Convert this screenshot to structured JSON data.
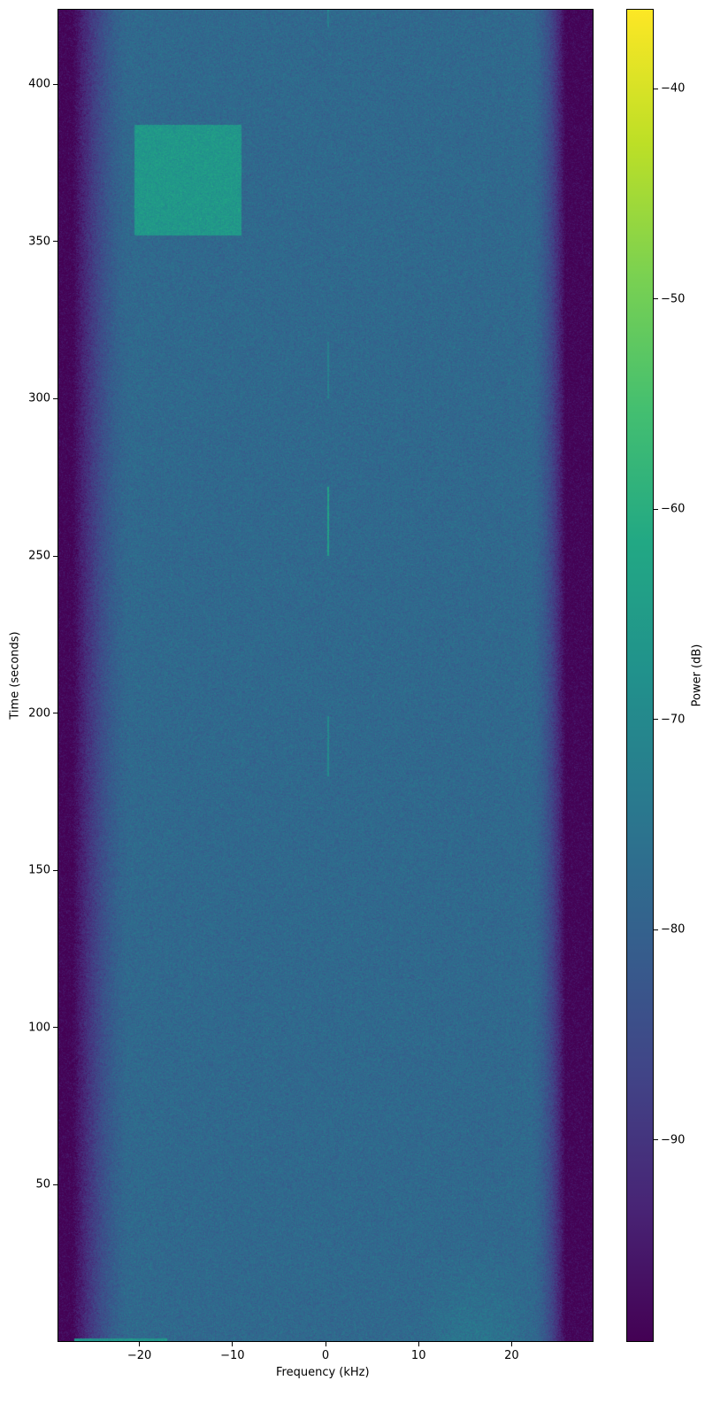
{
  "chart_data": {
    "type": "heatmap",
    "subtype": "spectrogram",
    "xlabel": "Frequency (kHz)",
    "ylabel": "Time (seconds)",
    "colorbar_label": "Power (dB)",
    "colormap": "viridis",
    "xlim": [
      -28.8,
      28.8
    ],
    "ylim": [
      0,
      424
    ],
    "clim": [
      -99.6,
      -36.2
    ],
    "xticks": [
      -20,
      -10,
      0,
      10,
      20
    ],
    "xtick_labels": [
      "−20",
      "−10",
      "0",
      "10",
      "20"
    ],
    "yticks": [
      50,
      100,
      150,
      200,
      250,
      300,
      350,
      400
    ],
    "ytick_labels": [
      "50",
      "100",
      "150",
      "200",
      "250",
      "300",
      "350",
      "400"
    ],
    "cticks": [
      -40,
      -50,
      -60,
      -70,
      -80,
      -90
    ],
    "ctick_labels": [
      "−40",
      "−50",
      "−60",
      "−70",
      "−80",
      "−90"
    ],
    "background_power_db": -78,
    "band_edge_power_db": -99,
    "features": [
      {
        "kind": "wideband-block",
        "freq_khz": [
          -20.5,
          -9
        ],
        "time_s": [
          352,
          387
        ],
        "power_db": -66
      },
      {
        "kind": "tone",
        "freq_khz": [
          0.2,
          0.4
        ],
        "time_s": [
          250,
          272
        ],
        "power_db": -64
      },
      {
        "kind": "tone",
        "freq_khz": [
          0.2,
          0.4
        ],
        "time_s": [
          180,
          199
        ],
        "power_db": -70
      },
      {
        "kind": "tone",
        "freq_khz": [
          0.2,
          0.4
        ],
        "time_s": [
          300,
          318
        ],
        "power_db": -72
      },
      {
        "kind": "tone",
        "freq_khz": [
          0.2,
          0.4
        ],
        "time_s": [
          418,
          424
        ],
        "power_db": -72
      },
      {
        "kind": "burst",
        "freq_khz": [
          -27,
          -17
        ],
        "time_s": [
          0,
          1.2
        ],
        "power_db": -67
      },
      {
        "kind": "diffuse",
        "freq_khz": [
          10,
          22
        ],
        "time_s": [
          0,
          30
        ],
        "power_db": -75
      }
    ]
  }
}
